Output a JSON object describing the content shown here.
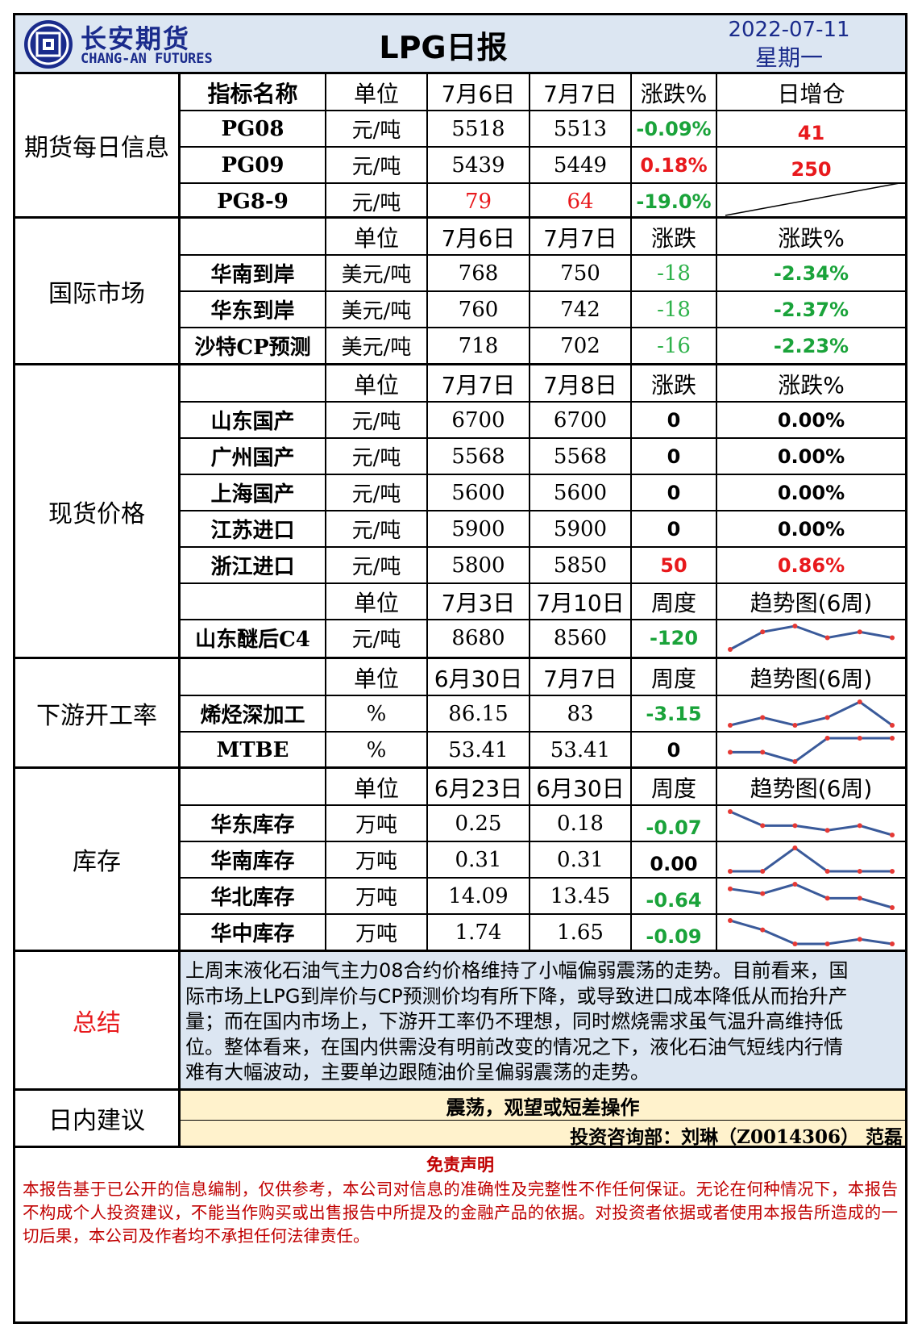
{
  "header": {
    "logo_cn": "长安期货",
    "logo_en": "CHANG-AN FUTURES",
    "title": "LPG日报",
    "date": "2022-07-11",
    "weekday": "星期一"
  },
  "futures": {
    "category": "期货每日信息",
    "headers": [
      "指标名称",
      "单位",
      "7月6日",
      "7月7日",
      "涨跌%",
      "日增仓"
    ],
    "rows": [
      {
        "name": "PG08",
        "unit": "元/吨",
        "v1": "5518",
        "v2": "5513",
        "chg": "-0.09%",
        "oi": "41"
      },
      {
        "name": "PG09",
        "unit": "元/吨",
        "v1": "5439",
        "v2": "5449",
        "chg": "0.18%",
        "oi": "250"
      },
      {
        "name": "PG8-9",
        "unit": "元/吨",
        "v1": "79",
        "v2": "64",
        "chg": "-19.0%",
        "oi": ""
      }
    ]
  },
  "intl": {
    "category": "国际市场",
    "headers": [
      "单位",
      "7月6日",
      "7月7日",
      "涨跌",
      "涨跌%"
    ],
    "rows": [
      {
        "name": "华南到岸",
        "unit": "美元/吨",
        "v1": "768",
        "v2": "750",
        "chg": "-18",
        "pct": "-2.34%"
      },
      {
        "name": "华东到岸",
        "unit": "美元/吨",
        "v1": "760",
        "v2": "742",
        "chg": "-18",
        "pct": "-2.37%"
      },
      {
        "name": "沙特CP预测",
        "unit": "美元/吨",
        "v1": "718",
        "v2": "702",
        "chg": "-16",
        "pct": "-2.23%"
      }
    ]
  },
  "spot": {
    "category": "现货价格",
    "headers": [
      "单位",
      "7月7日",
      "7月8日",
      "涨跌",
      "涨跌%"
    ],
    "rows": [
      {
        "name": "山东国产",
        "unit": "元/吨",
        "v1": "6700",
        "v2": "6700",
        "chg": "0",
        "pct": "0.00%"
      },
      {
        "name": "广州国产",
        "unit": "元/吨",
        "v1": "5568",
        "v2": "5568",
        "chg": "0",
        "pct": "0.00%"
      },
      {
        "name": "上海国产",
        "unit": "元/吨",
        "v1": "5600",
        "v2": "5600",
        "chg": "0",
        "pct": "0.00%"
      },
      {
        "name": "江苏进口",
        "unit": "元/吨",
        "v1": "5900",
        "v2": "5900",
        "chg": "0",
        "pct": "0.00%"
      },
      {
        "name": "浙江进口",
        "unit": "元/吨",
        "v1": "5800",
        "v2": "5850",
        "chg": "50",
        "pct": "0.86%"
      }
    ],
    "headers2": [
      "单位",
      "7月3日",
      "7月10日",
      "周度",
      "趋势图(6周)"
    ],
    "c4": {
      "name": "山东醚后C4",
      "unit": "元/吨",
      "v1": "8680",
      "v2": "8560",
      "chg": "-120",
      "trend": [
        1,
        4,
        5,
        3,
        4,
        3
      ]
    }
  },
  "downstream": {
    "category": "下游开工率",
    "headers": [
      "单位",
      "6月30日",
      "7月7日",
      "周度",
      "趋势图(6周)"
    ],
    "rows": [
      {
        "name": "烯烃深加工",
        "unit": "%",
        "v1": "86.15",
        "v2": "83",
        "chg": "-3.15",
        "trend": [
          2,
          3,
          2,
          3,
          5,
          2
        ]
      },
      {
        "name": "MTBE",
        "unit": "%",
        "v1": "53.41",
        "v2": "53.41",
        "chg": "0",
        "trend": [
          3,
          3,
          1,
          6,
          6,
          6
        ]
      }
    ]
  },
  "inventory": {
    "category": "库存",
    "headers": [
      "单位",
      "6月23日",
      "6月30日",
      "周度",
      "趋势图(6周)"
    ],
    "rows": [
      {
        "name": "华东库存",
        "unit": "万吨",
        "v1": "0.25",
        "v2": "0.18",
        "chg": "-0.07",
        "trend": [
          6,
          3,
          3,
          2,
          3,
          1
        ]
      },
      {
        "name": "华南库存",
        "unit": "万吨",
        "v1": "0.31",
        "v2": "0.31",
        "chg": "0.00",
        "trend": [
          1,
          1,
          6,
          1,
          1,
          1
        ]
      },
      {
        "name": "华北库存",
        "unit": "万吨",
        "v1": "14.09",
        "v2": "13.45",
        "chg": "-0.64",
        "trend": [
          5,
          4,
          6,
          3,
          3,
          1
        ]
      },
      {
        "name": "华中库存",
        "unit": "万吨",
        "v1": "1.74",
        "v2": "1.65",
        "chg": "-0.09",
        "trend": [
          6,
          4,
          1,
          1,
          2,
          1
        ]
      }
    ]
  },
  "summary": {
    "category": "总结",
    "text": "上周末液化石油气主力08合约价格维持了小幅偏弱震荡的走势。目前看来，国际市场上LPG到岸价与CP预测价均有所下降，或导致进口成本降低从而抬升产量；而在国内市场上，下游开工率仍不理想，同时燃烧需求虽气温升高维持低位。整体看来，在国内供需没有明前改变的情况之下，液化石油气短线内行情难有大幅波动，主要单边跟随油价呈偏弱震荡的走势。"
  },
  "advice": {
    "category": "日内建议",
    "text": "震荡，观望或短差操作",
    "author": "投资咨询部：刘琳（Z0014306） 范磊"
  },
  "disclaimer": {
    "title": "免责声明",
    "text": "本报告基于已公开的信息编制，仅供参考，本公司对信息的准确性及完整性不作任何保证。无论在何种情况下，本报告不构成个人投资建议，不能当作购买或出售报告中所提及的金融产品的依据。对投资者依据或者使用本报告所造成的一切后果，本公司及作者均不承担任何法律责任。"
  },
  "colors": {
    "header_bg": "#dce6f2",
    "summary_bg": "#dce6f2",
    "advice_bg": "#fff2cc",
    "logo_blue": "#1a2b8c",
    "up_red": "#e8191c",
    "down_green": "#1aa33a",
    "trend_line": "#3a5a9a"
  }
}
